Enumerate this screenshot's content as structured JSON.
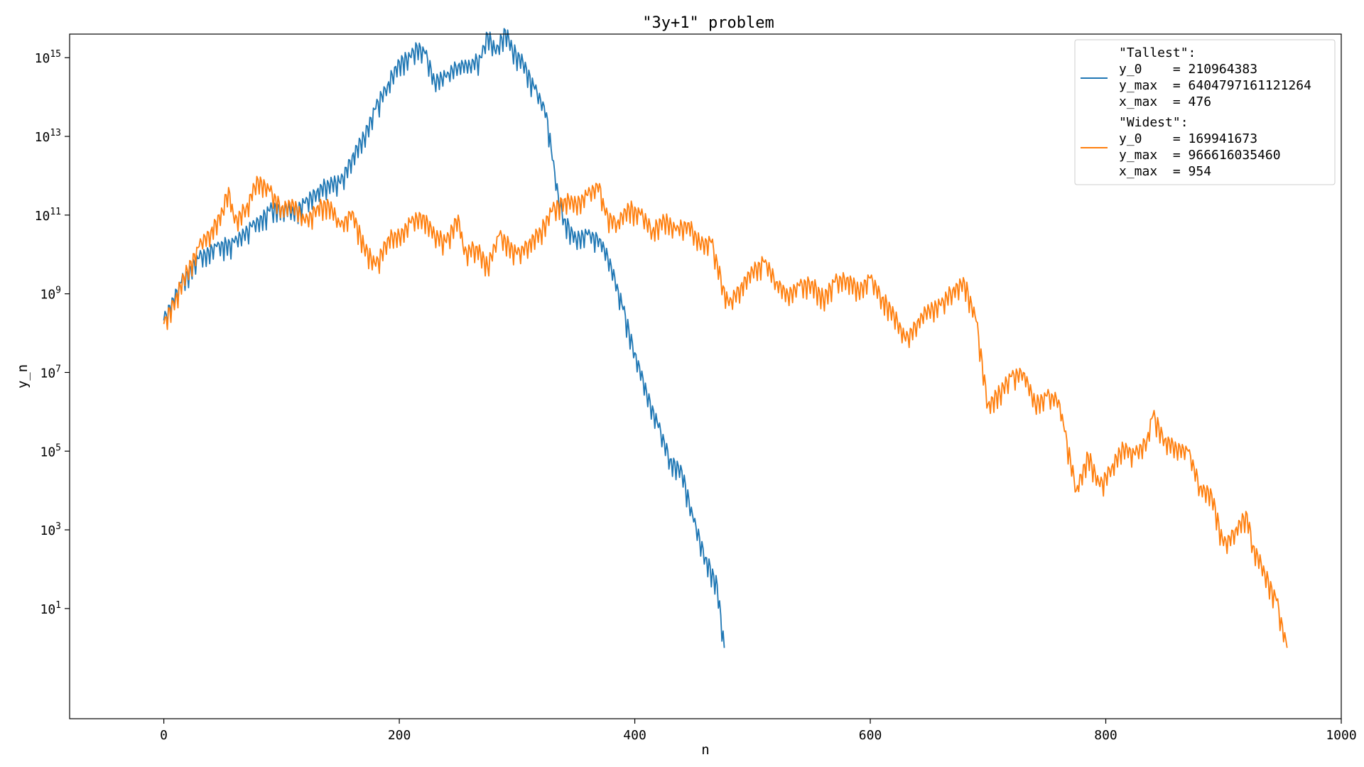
{
  "chart_data": {
    "type": "line",
    "title": "\"3y+1\" problem",
    "xlabel": "n",
    "ylabel": "y_n",
    "xlim": [
      -80,
      1000
    ],
    "ylim_log10": [
      -1.8,
      15.6
    ],
    "yscale": "log",
    "x_ticks": [
      0,
      200,
      400,
      600,
      800,
      1000
    ],
    "x_tick_labels": [
      "0",
      "200",
      "400",
      "600",
      "800",
      "1000"
    ],
    "y_ticks": [
      {
        "exp": 1,
        "base": "10",
        "sup": "1"
      },
      {
        "exp": 3,
        "base": "10",
        "sup": "3"
      },
      {
        "exp": 5,
        "base": "10",
        "sup": "5"
      },
      {
        "exp": 7,
        "base": "10",
        "sup": "7"
      },
      {
        "exp": 9,
        "base": "10",
        "sup": "9"
      },
      {
        "exp": 11,
        "base": "10",
        "sup": "11"
      },
      {
        "exp": 13,
        "base": "10",
        "sup": "13"
      },
      {
        "exp": 15,
        "base": "10",
        "sup": "15"
      }
    ],
    "legend_position": "top-right",
    "series": [
      {
        "name": "Tallest",
        "color": "#1f77b4",
        "legend_lines": [
          "\"Tallest\":",
          "y_0    = 210964383",
          "y_max  = 6404797161121264",
          "x_max  = 476"
        ],
        "anchors_log10": [
          [
            0,
            8.32
          ],
          [
            15,
            9.3
          ],
          [
            30,
            9.9
          ],
          [
            45,
            10.2
          ],
          [
            60,
            10.3
          ],
          [
            75,
            10.7
          ],
          [
            90,
            11.1
          ],
          [
            100,
            11.2
          ],
          [
            110,
            11.1
          ],
          [
            120,
            11.3
          ],
          [
            130,
            11.6
          ],
          [
            140,
            11.8
          ],
          [
            150,
            11.8
          ],
          [
            160,
            12.5
          ],
          [
            170,
            13.0
          ],
          [
            180,
            13.7
          ],
          [
            190,
            14.3
          ],
          [
            200,
            14.9
          ],
          [
            210,
            15.0
          ],
          [
            215,
            15.3
          ],
          [
            222,
            15.1
          ],
          [
            230,
            14.4
          ],
          [
            240,
            14.5
          ],
          [
            250,
            14.8
          ],
          [
            260,
            14.8
          ],
          [
            270,
            15.0
          ],
          [
            275,
            15.6
          ],
          [
            282,
            15.1
          ],
          [
            290,
            15.7
          ],
          [
            296,
            15.2
          ],
          [
            305,
            14.9
          ],
          [
            315,
            14.2
          ],
          [
            325,
            13.6
          ],
          [
            330,
            12.4
          ],
          [
            335,
            11.5
          ],
          [
            340,
            10.9
          ],
          [
            350,
            10.4
          ],
          [
            360,
            10.5
          ],
          [
            370,
            10.4
          ],
          [
            380,
            9.7
          ],
          [
            390,
            8.6
          ],
          [
            400,
            7.5
          ],
          [
            410,
            6.5
          ],
          [
            420,
            5.6
          ],
          [
            430,
            4.8
          ],
          [
            440,
            4.5
          ],
          [
            450,
            3.2
          ],
          [
            460,
            2.3
          ],
          [
            470,
            1.6
          ],
          [
            476,
            0.0
          ]
        ]
      },
      {
        "name": "Widest",
        "color": "#ff7f0e",
        "legend_lines": [
          "\"Widest\":",
          "y_0    = 169941673",
          "y_max  = 966616035460",
          "x_max  = 954"
        ],
        "anchors_log10": [
          [
            0,
            8.23
          ],
          [
            10,
            8.9
          ],
          [
            20,
            9.6
          ],
          [
            30,
            10.2
          ],
          [
            40,
            10.6
          ],
          [
            50,
            11.1
          ],
          [
            55,
            11.7
          ],
          [
            60,
            10.8
          ],
          [
            70,
            11.2
          ],
          [
            80,
            11.9
          ],
          [
            90,
            11.6
          ],
          [
            100,
            11.2
          ],
          [
            110,
            11.3
          ],
          [
            120,
            10.8
          ],
          [
            130,
            11.2
          ],
          [
            140,
            11.3
          ],
          [
            150,
            10.7
          ],
          [
            160,
            11.1
          ],
          [
            170,
            10.2
          ],
          [
            180,
            9.7
          ],
          [
            190,
            10.4
          ],
          [
            200,
            10.5
          ],
          [
            210,
            10.8
          ],
          [
            220,
            11.0
          ],
          [
            230,
            10.5
          ],
          [
            240,
            10.3
          ],
          [
            250,
            11.0
          ],
          [
            255,
            10.0
          ],
          [
            265,
            10.2
          ],
          [
            275,
            9.7
          ],
          [
            285,
            10.5
          ],
          [
            300,
            10.0
          ],
          [
            310,
            10.3
          ],
          [
            320,
            10.6
          ],
          [
            330,
            11.1
          ],
          [
            340,
            11.4
          ],
          [
            350,
            11.3
          ],
          [
            360,
            11.5
          ],
          [
            370,
            11.8
          ],
          [
            375,
            11.0
          ],
          [
            385,
            10.8
          ],
          [
            395,
            11.2
          ],
          [
            405,
            11.0
          ],
          [
            415,
            10.6
          ],
          [
            425,
            10.9
          ],
          [
            435,
            10.6
          ],
          [
            445,
            10.8
          ],
          [
            455,
            10.3
          ],
          [
            465,
            10.3
          ],
          [
            475,
            9.2
          ],
          [
            480,
            8.7
          ],
          [
            490,
            9.2
          ],
          [
            500,
            9.6
          ],
          [
            510,
            9.8
          ],
          [
            520,
            9.3
          ],
          [
            530,
            9.0
          ],
          [
            540,
            9.2
          ],
          [
            550,
            9.3
          ],
          [
            560,
            8.9
          ],
          [
            570,
            9.3
          ],
          [
            580,
            9.4
          ],
          [
            590,
            9.1
          ],
          [
            600,
            9.4
          ],
          [
            610,
            8.9
          ],
          [
            620,
            8.5
          ],
          [
            630,
            7.8
          ],
          [
            640,
            8.3
          ],
          [
            650,
            8.6
          ],
          [
            660,
            8.7
          ],
          [
            670,
            9.1
          ],
          [
            680,
            9.3
          ],
          [
            690,
            8.3
          ],
          [
            700,
            6.2
          ],
          [
            710,
            6.5
          ],
          [
            720,
            6.9
          ],
          [
            730,
            7.0
          ],
          [
            740,
            6.2
          ],
          [
            750,
            6.4
          ],
          [
            760,
            6.3
          ],
          [
            765,
            5.5
          ],
          [
            775,
            4.0
          ],
          [
            785,
            4.9
          ],
          [
            795,
            4.1
          ],
          [
            805,
            4.6
          ],
          [
            815,
            5.1
          ],
          [
            825,
            4.9
          ],
          [
            835,
            5.3
          ],
          [
            840,
            5.9
          ],
          [
            850,
            5.3
          ],
          [
            860,
            5.1
          ],
          [
            870,
            5.0
          ],
          [
            880,
            4.1
          ],
          [
            890,
            3.9
          ],
          [
            900,
            2.6
          ],
          [
            910,
            3.0
          ],
          [
            920,
            3.4
          ],
          [
            925,
            2.6
          ],
          [
            935,
            1.9
          ],
          [
            945,
            1.2
          ],
          [
            954,
            0.0
          ]
        ]
      }
    ]
  }
}
